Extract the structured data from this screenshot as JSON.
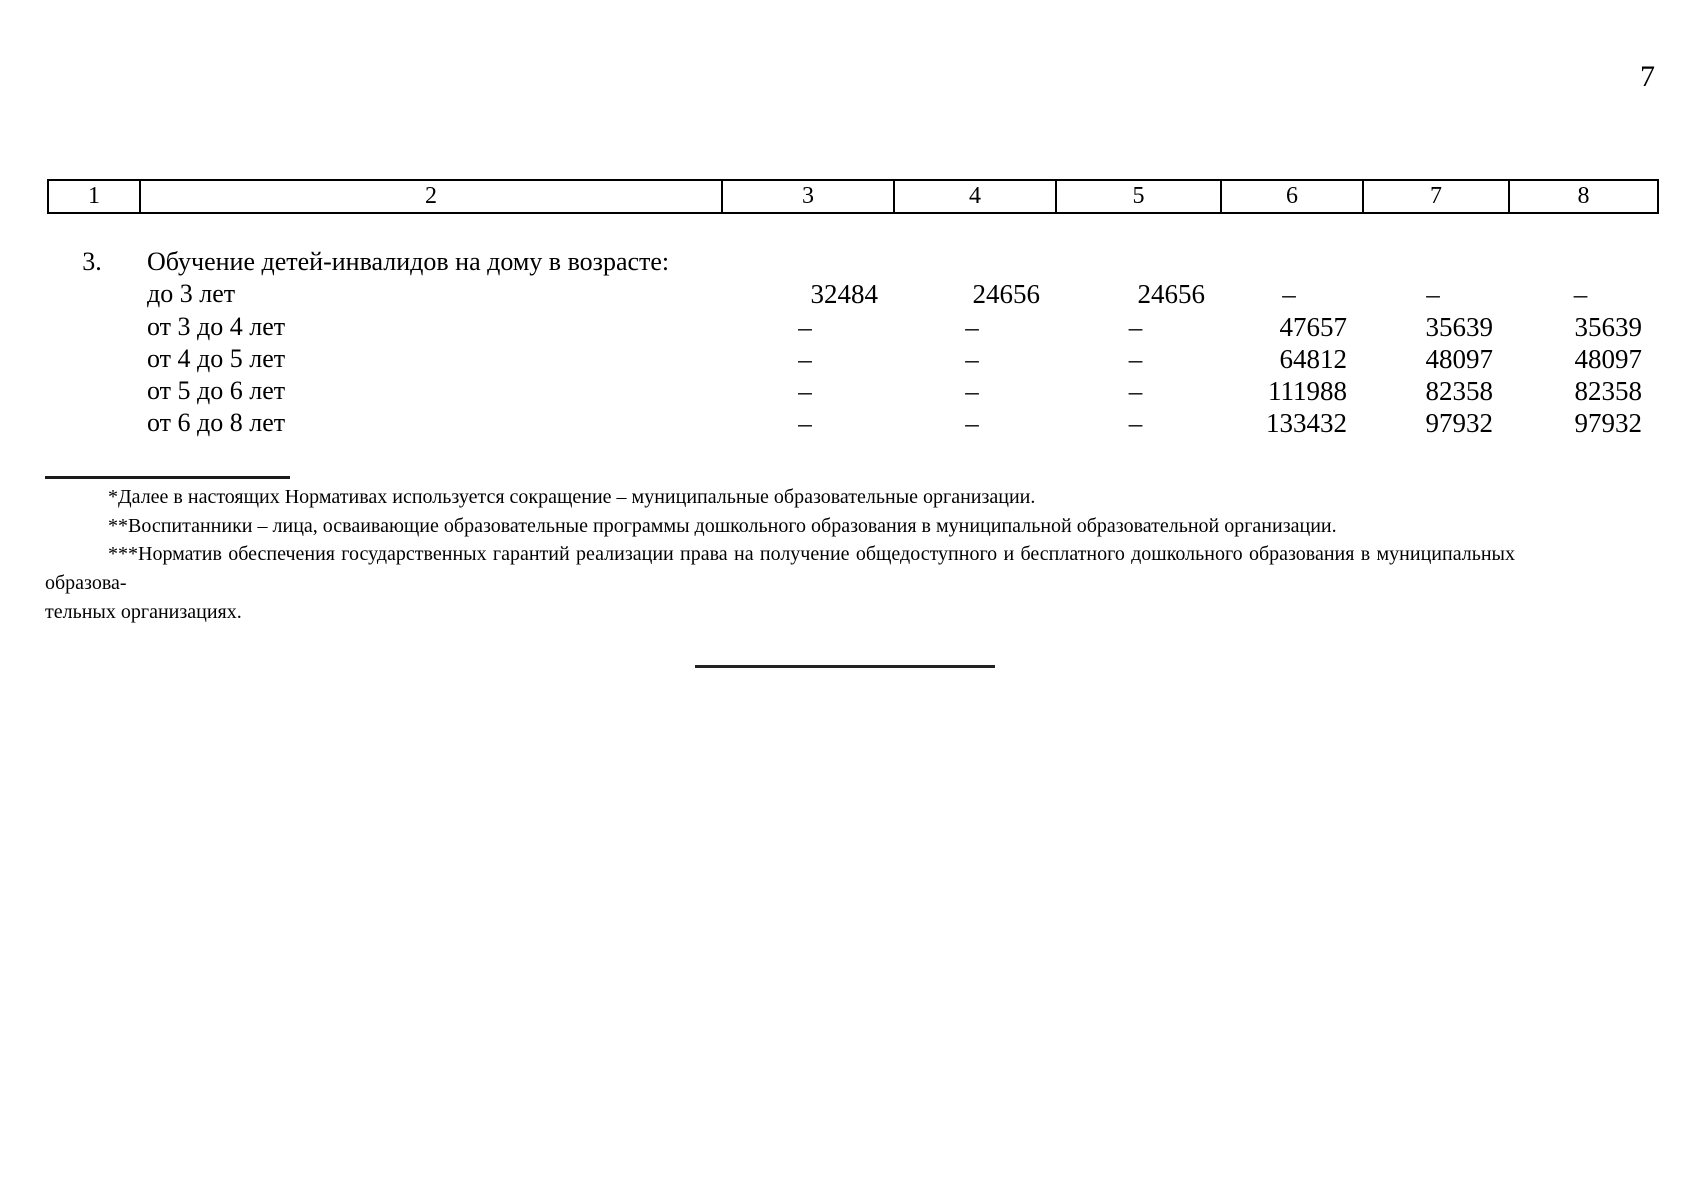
{
  "page": {
    "number": "7"
  },
  "colors": {
    "ink": "#000000",
    "paper": "#ffffff"
  },
  "table": {
    "header_columns": [
      "1",
      "2",
      "3",
      "4",
      "5",
      "6",
      "7",
      "8"
    ],
    "section": {
      "index": "3.",
      "title": "Обучение детей-инвалидов на дому в возрасте:"
    },
    "rows": [
      {
        "label": "до 3 лет",
        "values": [
          "32484",
          "24656",
          "24656",
          "–",
          "–",
          "–"
        ]
      },
      {
        "label": "от 3 до 4 лет",
        "values": [
          "–",
          "–",
          "–",
          "47657",
          "35639",
          "35639"
        ]
      },
      {
        "label": "от 4 до 5 лет",
        "values": [
          "–",
          "–",
          "–",
          "64812",
          "48097",
          "48097"
        ]
      },
      {
        "label": "от 5 до 6 лет",
        "values": [
          "–",
          "–",
          "–",
          "111988",
          "82358",
          "82358"
        ]
      },
      {
        "label": "от 6 до 8 лет",
        "values": [
          "–",
          "–",
          "–",
          "133432",
          "97932",
          "97932"
        ]
      }
    ]
  },
  "footnotes": {
    "items": [
      "*Далее в настоящих Нормативах используется сокращение – муниципальные образовательные организации.",
      "**Воспитанники – лица, осваивающие образовательные программы дошкольного образования в муниципальной образовательной организации.",
      "***Норматив обеспечения государственных гарантий реализации права на получение общедоступного и бесплатного дошкольного образования в муниципальных образова-",
      "тельных организациях."
    ]
  }
}
